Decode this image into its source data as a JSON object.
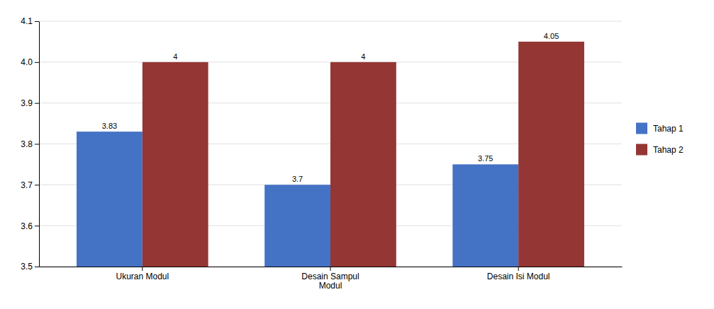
{
  "chart_data": {
    "type": "bar",
    "categories": [
      "Ukuran Modul",
      "Desain Sampul\nModul",
      "Desain Isi Modul"
    ],
    "series": [
      {
        "name": "Tahap 1",
        "color": "#4472C4",
        "values": [
          3.83,
          3.7,
          3.75
        ]
      },
      {
        "name": "Tahap 2",
        "color": "#943634",
        "values": [
          4,
          4,
          4.05
        ]
      }
    ],
    "ylim": [
      3.5,
      4.1
    ],
    "yticks": [
      3.5,
      3.6,
      3.7,
      3.8,
      3.9,
      {
        "value": 4.0,
        "label": "4.0"
      },
      4.1
    ],
    "grid": true,
    "legend": "right",
    "data_labels": true
  }
}
